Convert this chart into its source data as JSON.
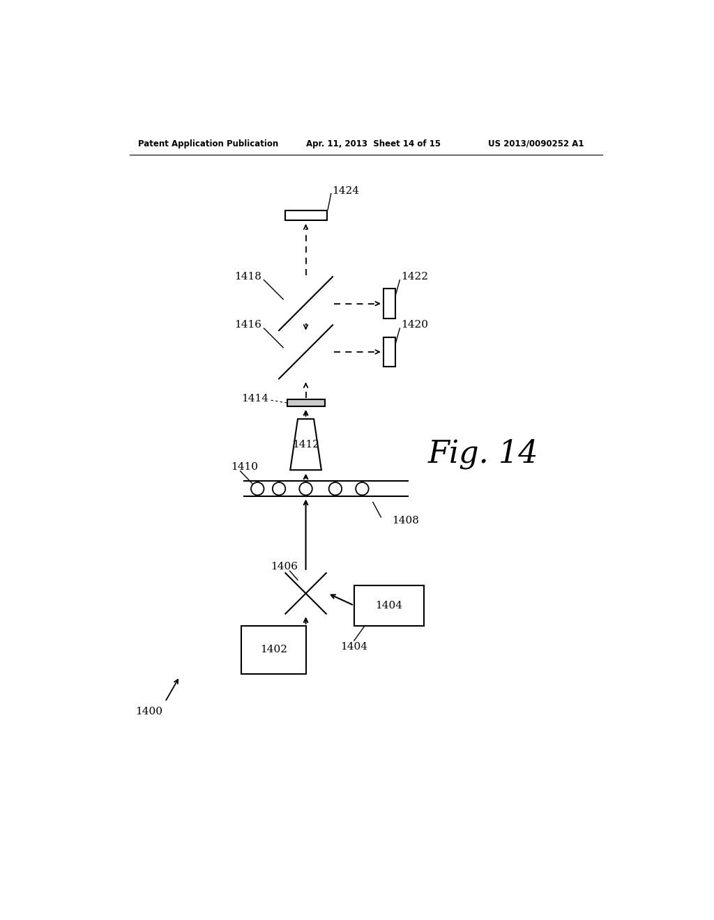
{
  "background_color": "#ffffff",
  "header_text": "Patent Application Publication",
  "header_date": "Apr. 11, 2013  Sheet 14 of 15",
  "header_patent": "US 2013/0090252 A1",
  "fig_label": "Fig. 14"
}
